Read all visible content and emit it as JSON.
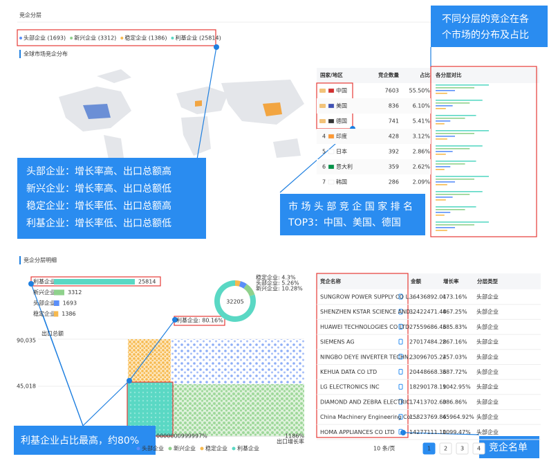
{
  "section_title": "竞企分层",
  "legend": [
    {
      "text": "头部企业 (1693)",
      "color": "#5b8ff9"
    },
    {
      "text": "新兴企业 (3312)",
      "color": "#8fd18c"
    },
    {
      "text": "稳定企业 (1386)",
      "color": "#f6b94e"
    },
    {
      "text": "利基企业 (25814)",
      "color": "#5ad8c4"
    }
  ],
  "map_title": "全球市场竞企分布",
  "country_table": {
    "headers": [
      "国家/地区",
      "竞企数量",
      "占比",
      "各分层对比"
    ],
    "rows": [
      {
        "country": "中国",
        "count": "7603",
        "share": "55.50%"
      },
      {
        "country": "美国",
        "count": "836",
        "share": "6.10%"
      },
      {
        "country": "德国",
        "count": "741",
        "share": "5.41%"
      },
      {
        "rank": "4",
        "country": "印度",
        "count": "428",
        "share": "3.12%"
      },
      {
        "rank": "5",
        "country": "日本",
        "count": "392",
        "share": "2.86%"
      },
      {
        "rank": "6",
        "country": "意大利",
        "count": "359",
        "share": "2.62%"
      },
      {
        "rank": "7",
        "country": "韩国",
        "count": "286",
        "share": "2.09%"
      }
    ]
  },
  "detail_title": "竞企分层明细",
  "bar_chart": {
    "categories": [
      "利基企业",
      "新兴企业",
      "头部企业",
      "稳定企业"
    ],
    "values": [
      25814,
      3312,
      1693,
      1386
    ],
    "colors": [
      "#5ad8c4",
      "#8fd18c",
      "#5b8ff9",
      "#f6b94e"
    ]
  },
  "donut": {
    "total": "32205",
    "segments": [
      {
        "label": "稳定企业: 4.3%",
        "value": 4.3,
        "color": "#f6b94e"
      },
      {
        "label": "头部企业: 5.26%",
        "value": 5.26,
        "color": "#5b8ff9"
      },
      {
        "label": "新兴企业: 10.28%",
        "value": 10.28,
        "color": "#8fd18c"
      },
      {
        "label": "利基企业: 80.16%",
        "value": 80.16,
        "color": "#5ad8c4"
      }
    ]
  },
  "scatter": {
    "y_title": "出口总额",
    "x_title": "出口增长率",
    "yticks": [
      "90,035",
      "45,018"
    ],
    "xticks": [
      "0000000999997%",
      "1186%"
    ],
    "legend": [
      "头部企业",
      "新兴企业",
      "稳定企业",
      "利基企业"
    ]
  },
  "company_table": {
    "headers": [
      "竞企名称",
      "金额",
      "增长率",
      "分层类型"
    ],
    "rows": [
      [
        "SUNGROW POWER SUPPLY CO L...",
        "36436892.01",
        "473.16%",
        "头部企业"
      ],
      [
        "SHENZHEN KSTAR SCIENCE AND...",
        "32422471.48",
        "467.25%",
        "头部企业"
      ],
      [
        "HUAWEI TECHNOLOGIES CO LTD",
        "27559686.46",
        "385.83%",
        "头部企业"
      ],
      [
        "SIEMENS AG",
        "27017484.28",
        "267.16%",
        "头部企业"
      ],
      [
        "NINGBO DEYE INVERTER TECHN...",
        "23096705.24",
        "257.03%",
        "头部企业"
      ],
      [
        "KEHUA DATA CO LTD",
        "20448668.36",
        "387.72%",
        "头部企业"
      ],
      [
        "LG ELECTRONICS INC",
        "18290178.19",
        "1042.95%",
        "头部企业"
      ],
      [
        "DIAMOND AND ZEBRA ELECTRIC...",
        "17413702.60",
        "386.86%",
        "头部企业"
      ],
      [
        "China Machinery Engineering Cor...",
        "15823769.86",
        "45964.92%",
        "头部企业"
      ],
      [
        "HOMA APPLIANCES CO LTD",
        "14277111.10",
        "1099.47%",
        "头部企业"
      ]
    ]
  },
  "pagination": {
    "page_size": "10 条/页",
    "pages": [
      "1",
      "2",
      "3",
      "4"
    ]
  },
  "annotations": {
    "markets": [
      "不同分层的竞企在各",
      "个市场的分布及占比"
    ],
    "tiers": [
      "头部企业：增长率高、出口总额高",
      "新兴企业：增长率高、出口总额低",
      "稳定企业：增长率低、出口总额高",
      "利基企业：增长率低、出口总额低"
    ],
    "top3": [
      "市 场 头 部 竞 企 国 家 排 名",
      "TOP3：中国、美国、德国"
    ],
    "niche": "利基企业占比最高，约80%",
    "list": "竞企名单"
  }
}
